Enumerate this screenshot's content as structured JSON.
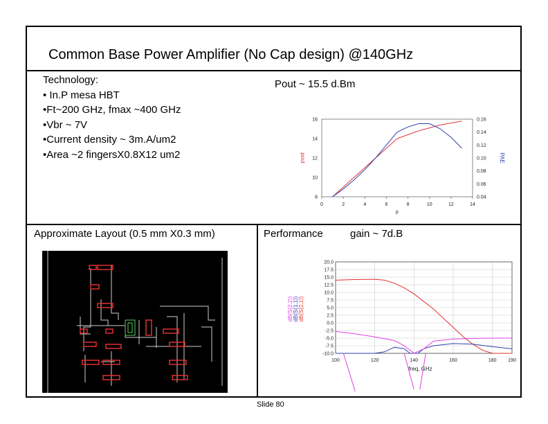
{
  "title": "Common Base Power Amplifier   (No Cap design) @140GHz",
  "technology": {
    "heading": "Technology:",
    "items": [
      "• In.P mesa HBT",
      "•Ft~200 GHz, fmax ~400 GHz",
      "•Vbr ~ 7V",
      "•Current density ~ 3m.A/um2",
      "•Area ~2 fingersX0.8X12 um2"
    ]
  },
  "pout_label": "Pout ~ 15.5 d.Bm",
  "layout_label": "Approximate Layout (0.5 mm X0.3 mm)",
  "performance_label": "Performance",
  "gain_label": "gain ~ 7d.B",
  "slide_number": "Slide 80",
  "colors": {
    "pout": "#e03030",
    "pae": "#3040b0",
    "s21": "#e03030",
    "s11": "#3040b0",
    "s22": "#e040e0",
    "layout_bg": "#000000",
    "layout_line": "#d0d0d0",
    "layout_pad": "#e03030"
  },
  "chart_data": [
    {
      "type": "line",
      "xlabel": "p",
      "ylabel": "pout",
      "y2label": "PAE",
      "xlim": [
        0,
        14
      ],
      "xticks": [
        "0",
        "2",
        "4",
        "6",
        "8",
        "10",
        "12",
        "14"
      ],
      "ylim": [
        8,
        16
      ],
      "yticks": [
        "8",
        "10",
        "12",
        "14",
        "16"
      ],
      "y2lim": [
        0.04,
        0.16
      ],
      "y2ticks": [
        "0.04",
        "0.06",
        "0.08",
        "0.10",
        "0.12",
        "0.14",
        "0.16"
      ],
      "series": [
        {
          "axis": "left",
          "color": "#e03030",
          "x": [
            1,
            2,
            3,
            4,
            5,
            6,
            7,
            8,
            9,
            10,
            11,
            12,
            13
          ],
          "y": [
            8.0,
            9.0,
            10.0,
            11.0,
            12.0,
            13.0,
            14.0,
            14.4,
            14.8,
            15.1,
            15.4,
            15.6,
            15.8
          ]
        },
        {
          "axis": "right",
          "color": "#3040b0",
          "x": [
            1,
            2,
            3,
            4,
            5,
            6,
            7,
            8,
            9,
            10,
            11,
            12,
            13
          ],
          "y": [
            0.04,
            0.052,
            0.066,
            0.082,
            0.1,
            0.12,
            0.14,
            0.148,
            0.153,
            0.153,
            0.145,
            0.132,
            0.115
          ]
        }
      ]
    },
    {
      "type": "line",
      "xlabel": "freq, GHz",
      "ylabel_series": [
        "dB(S(2,2))",
        "dB(S(1,1))",
        "dB(S(2,1))"
      ],
      "xlim": [
        100,
        190
      ],
      "xticks": [
        "100",
        "120",
        "140",
        "160",
        "180",
        "190"
      ],
      "ylim": [
        -10,
        20
      ],
      "yticks": [
        "20.0",
        "17.5",
        "15.0",
        "12.5",
        "10.0",
        "7.5",
        "5.0",
        "2.5",
        "0.0",
        "-2.5",
        "-5.0",
        "-7.5",
        "-10.0"
      ],
      "series": [
        {
          "name": "dB(S(2,1))",
          "color": "#e03030",
          "x": [
            100,
            110,
            120,
            125,
            130,
            135,
            140,
            145,
            150,
            155,
            160,
            165,
            170,
            175,
            180,
            185,
            190
          ],
          "y": [
            14.0,
            14.2,
            14.3,
            14.0,
            13.0,
            11.5,
            9.5,
            7.0,
            4.5,
            1.5,
            -1.5,
            -4.5,
            -7.0,
            -9.0,
            -10.0,
            -10.0,
            -10.0
          ]
        },
        {
          "name": "dB(S(1,1))",
          "color": "#3040b0",
          "x": [
            100,
            110,
            120,
            125,
            130,
            135,
            138,
            140,
            142,
            145,
            150,
            160,
            170,
            180,
            190
          ],
          "y": [
            -10.0,
            -10.0,
            -10.0,
            -9.5,
            -8.0,
            -8.5,
            -10.0,
            -10.0,
            -10.0,
            -8.5,
            -7.5,
            -6.8,
            -7.0,
            -7.8,
            -8.5
          ]
        },
        {
          "name": "dB(S(2,2))",
          "color": "#e040e0",
          "x": [
            100,
            110,
            120,
            130,
            135,
            140,
            145,
            150,
            160,
            170,
            180,
            190
          ],
          "y": [
            -2.8,
            -3.6,
            -4.6,
            -5.8,
            -7.5,
            -10.0,
            -8.5,
            -6.0,
            -5.3,
            -5.1,
            -5.0,
            -5.0
          ]
        }
      ]
    }
  ]
}
